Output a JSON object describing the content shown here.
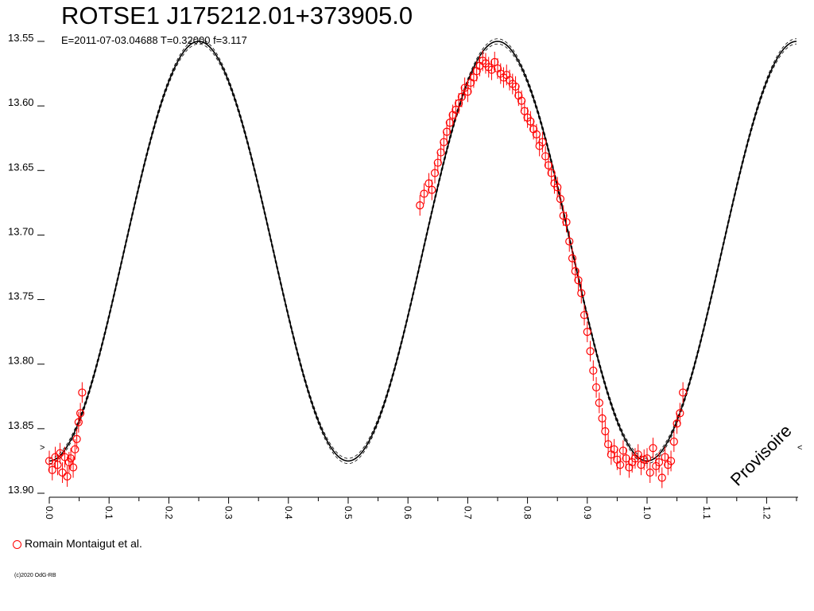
{
  "chart_data": {
    "type": "scatter",
    "title": "ROTSE1 J175212.01+373905.0",
    "subtitle": "E=2011-07-03.04688    T=0.32000    f=3.117",
    "xlabel": "",
    "ylabel": "",
    "xlim": [
      0.0,
      1.25
    ],
    "ylim": [
      13.9,
      13.55
    ],
    "y_inverted": true,
    "grid": false,
    "x_ticks": [
      "0.0",
      "0.1",
      "0.2",
      "0.3",
      "0.4",
      "0.5",
      "0.6",
      "0.7",
      "0.8",
      "0.9",
      "1.0",
      "1.1",
      "1.2"
    ],
    "y_ticks": [
      "13.55",
      "13.60",
      "13.65",
      "13.70",
      "13.75",
      "13.80",
      "13.85",
      "13.90"
    ],
    "watermark": "Provisoire",
    "model_curve": {
      "color": "#000000",
      "description": "double-wave fit",
      "mean_mag": 13.7125,
      "amplitude": 0.1625,
      "period_cycles": 2
    },
    "series": [
      {
        "name": "Romain Montaigut et al.",
        "color": "#ff0000",
        "marker": "open-circle",
        "error": 0.008,
        "points": [
          [
            0.0,
            13.875
          ],
          [
            0.005,
            13.882
          ],
          [
            0.01,
            13.872
          ],
          [
            0.014,
            13.878
          ],
          [
            0.018,
            13.869
          ],
          [
            0.022,
            13.884
          ],
          [
            0.026,
            13.872
          ],
          [
            0.03,
            13.887
          ],
          [
            0.033,
            13.876
          ],
          [
            0.036,
            13.873
          ],
          [
            0.04,
            13.88
          ],
          [
            0.043,
            13.866
          ],
          [
            0.046,
            13.858
          ],
          [
            0.049,
            13.845
          ],
          [
            0.052,
            13.838
          ],
          [
            0.055,
            13.822
          ],
          [
            0.62,
            13.677
          ],
          [
            0.627,
            13.668
          ],
          [
            0.635,
            13.66
          ],
          [
            0.64,
            13.665
          ],
          [
            0.645,
            13.652
          ],
          [
            0.65,
            13.644
          ],
          [
            0.655,
            13.636
          ],
          [
            0.66,
            13.628
          ],
          [
            0.665,
            13.62
          ],
          [
            0.67,
            13.613
          ],
          [
            0.675,
            13.607
          ],
          [
            0.68,
            13.603
          ],
          [
            0.685,
            13.598
          ],
          [
            0.69,
            13.593
          ],
          [
            0.695,
            13.586
          ],
          [
            0.7,
            13.589
          ],
          [
            0.705,
            13.582
          ],
          [
            0.71,
            13.578
          ],
          [
            0.715,
            13.573
          ],
          [
            0.72,
            13.569
          ],
          [
            0.725,
            13.565
          ],
          [
            0.73,
            13.567
          ],
          [
            0.735,
            13.57
          ],
          [
            0.74,
            13.572
          ],
          [
            0.745,
            13.566
          ],
          [
            0.75,
            13.571
          ],
          [
            0.755,
            13.575
          ],
          [
            0.76,
            13.578
          ],
          [
            0.765,
            13.576
          ],
          [
            0.77,
            13.58
          ],
          [
            0.775,
            13.583
          ],
          [
            0.78,
            13.585
          ],
          [
            0.785,
            13.592
          ],
          [
            0.79,
            13.596
          ],
          [
            0.795,
            13.604
          ],
          [
            0.8,
            13.609
          ],
          [
            0.805,
            13.612
          ],
          [
            0.81,
            13.618
          ],
          [
            0.815,
            13.622
          ],
          [
            0.82,
            13.631
          ],
          [
            0.825,
            13.628
          ],
          [
            0.83,
            13.639
          ],
          [
            0.835,
            13.646
          ],
          [
            0.84,
            13.652
          ],
          [
            0.845,
            13.66
          ],
          [
            0.85,
            13.663
          ],
          [
            0.855,
            13.672
          ],
          [
            0.86,
            13.685
          ],
          [
            0.865,
            13.69
          ],
          [
            0.87,
            13.705
          ],
          [
            0.875,
            13.718
          ],
          [
            0.88,
            13.728
          ],
          [
            0.885,
            13.735
          ],
          [
            0.89,
            13.745
          ],
          [
            0.895,
            13.762
          ],
          [
            0.9,
            13.775
          ],
          [
            0.905,
            13.79
          ],
          [
            0.91,
            13.805
          ],
          [
            0.915,
            13.818
          ],
          [
            0.92,
            13.83
          ],
          [
            0.925,
            13.842
          ],
          [
            0.93,
            13.852
          ],
          [
            0.935,
            13.862
          ],
          [
            0.94,
            13.87
          ],
          [
            0.945,
            13.866
          ],
          [
            0.95,
            13.874
          ],
          [
            0.955,
            13.878
          ],
          [
            0.96,
            13.867
          ],
          [
            0.965,
            13.873
          ],
          [
            0.97,
            13.88
          ],
          [
            0.975,
            13.876
          ],
          [
            0.98,
            13.873
          ],
          [
            0.985,
            13.87
          ],
          [
            0.99,
            13.878
          ],
          [
            0.995,
            13.874
          ],
          [
            1.0,
            13.873
          ],
          [
            1.005,
            13.884
          ],
          [
            1.01,
            13.865
          ],
          [
            1.015,
            13.879
          ],
          [
            1.02,
            13.876
          ],
          [
            1.025,
            13.888
          ],
          [
            1.03,
            13.872
          ],
          [
            1.035,
            13.878
          ],
          [
            1.04,
            13.875
          ],
          [
            1.045,
            13.86
          ],
          [
            1.05,
            13.846
          ],
          [
            1.055,
            13.838
          ],
          [
            1.06,
            13.822
          ]
        ]
      }
    ]
  },
  "legend": {
    "label": "Romain Montaigut et al."
  },
  "footer": {
    "copyright": "(c)2020 OdG-RB"
  }
}
